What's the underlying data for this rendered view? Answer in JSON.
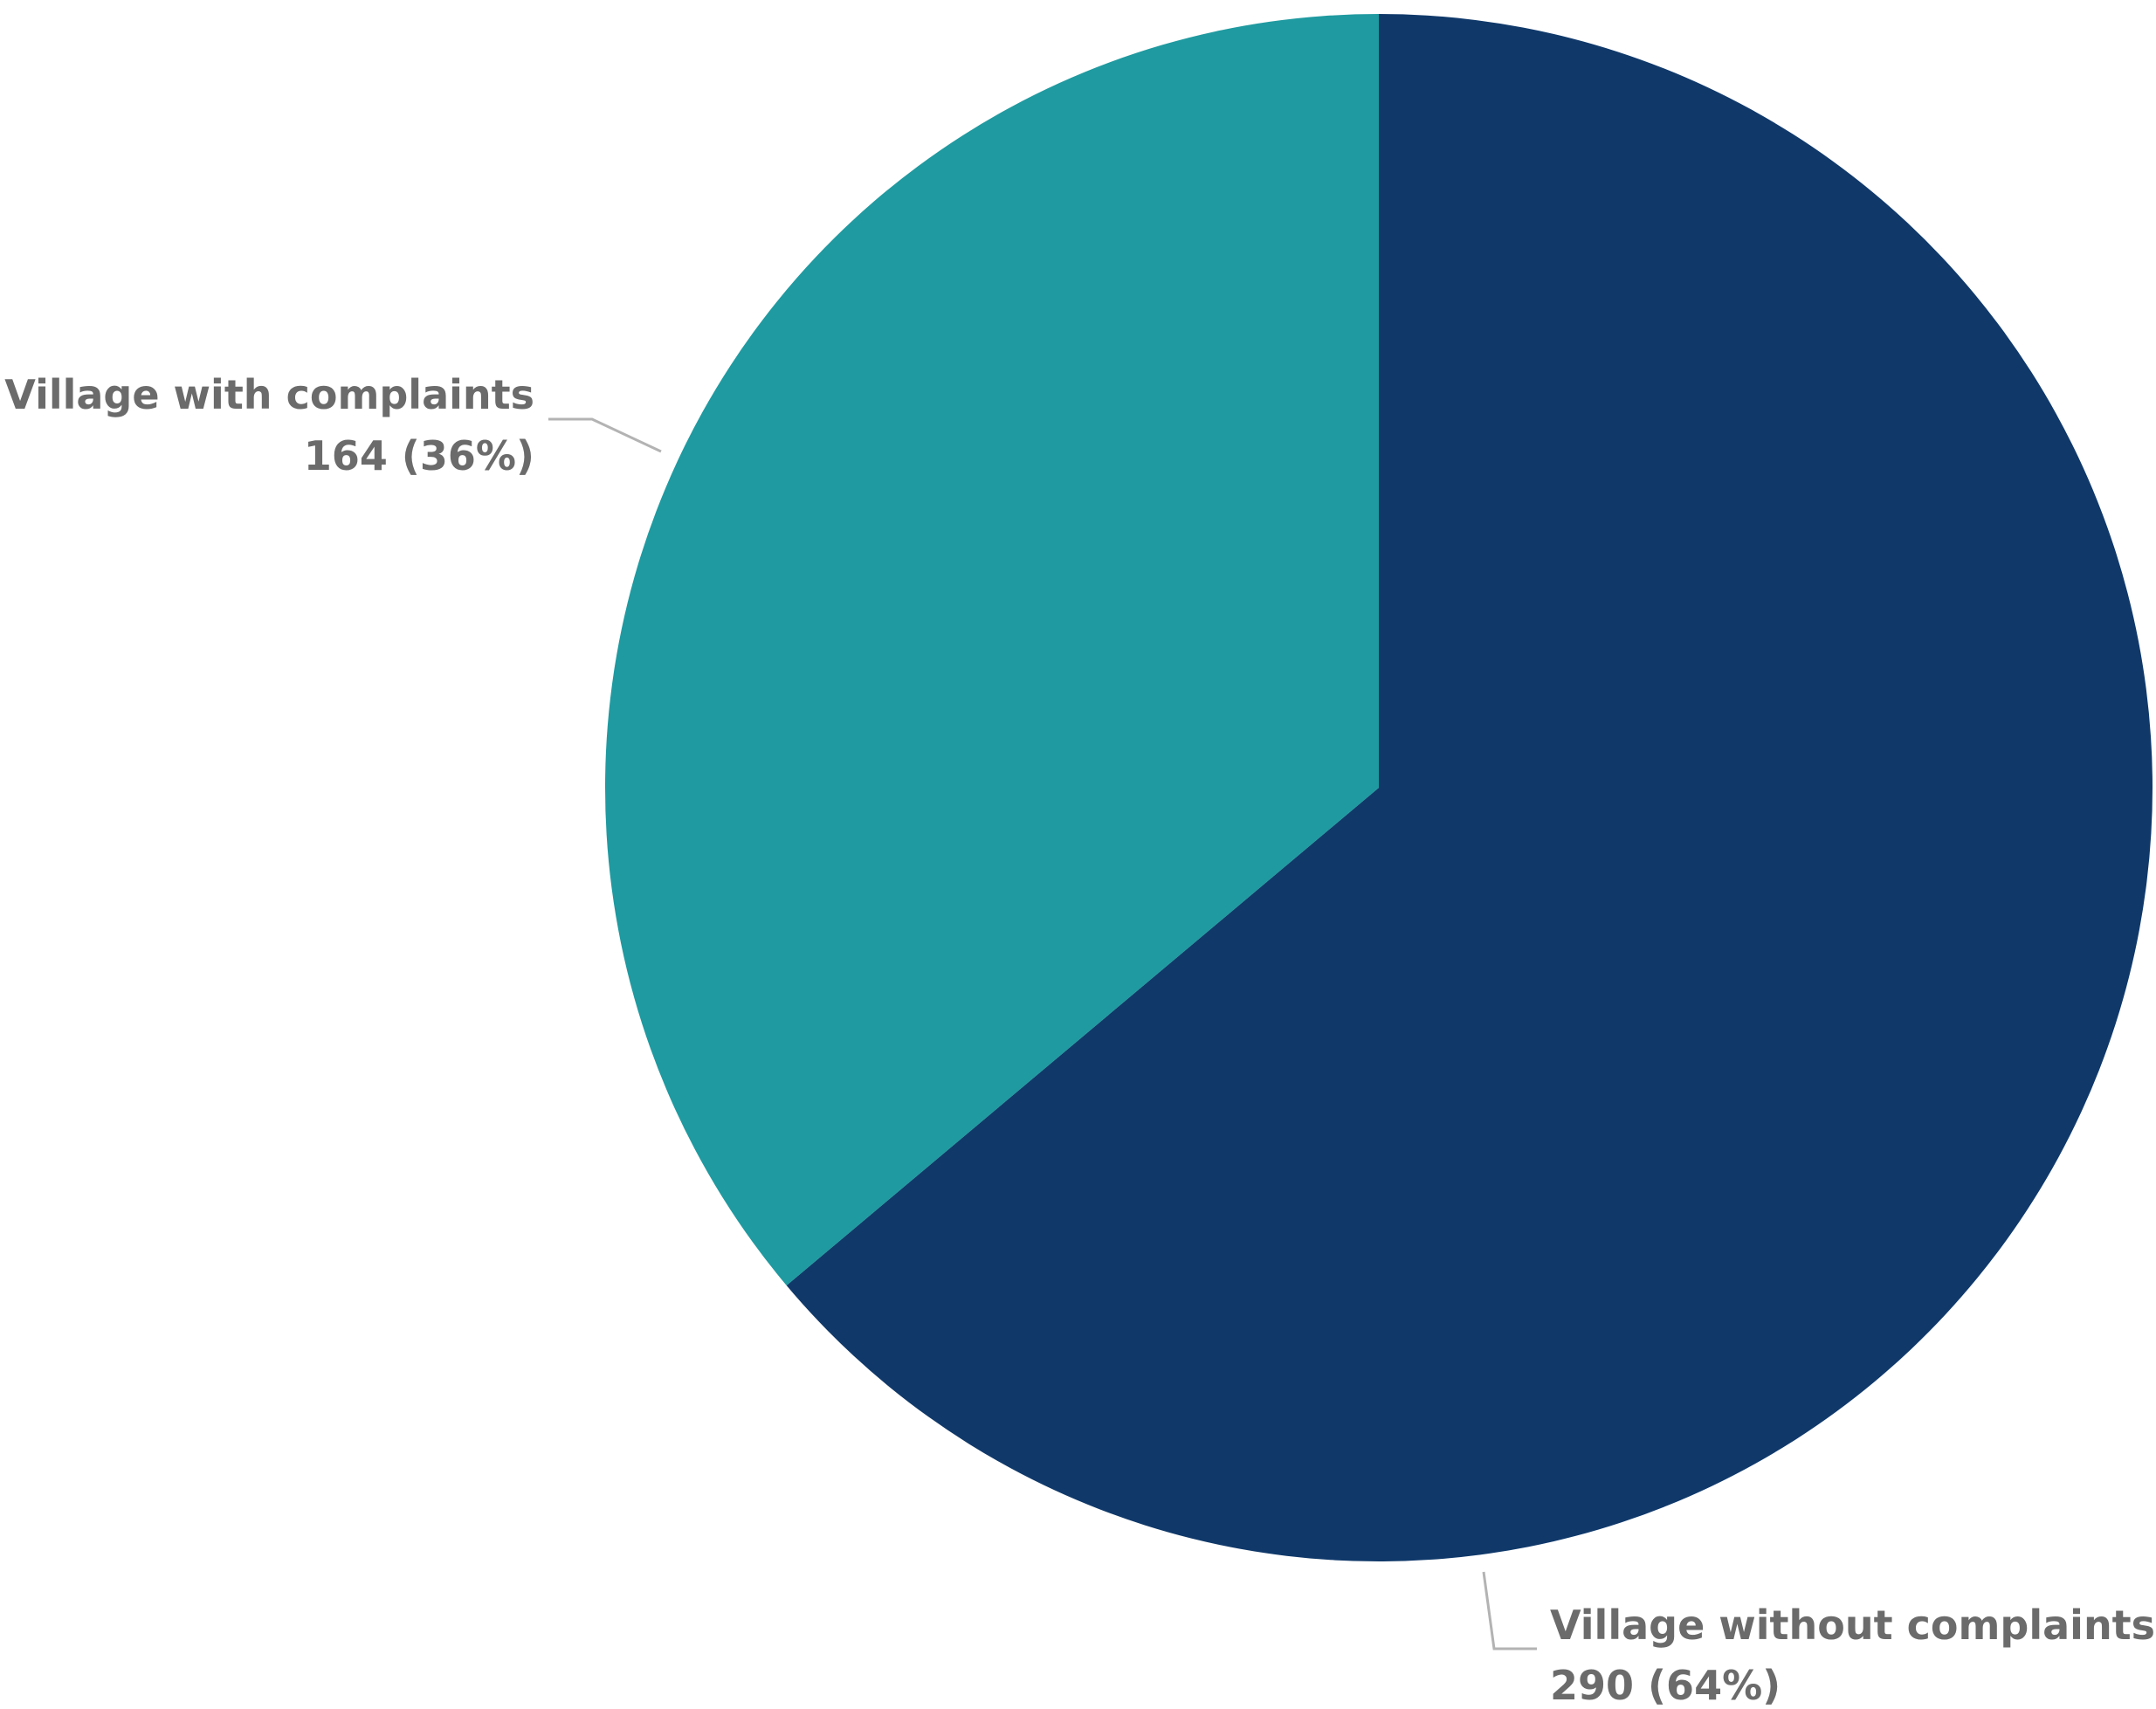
{
  "chart_data": {
    "type": "pie",
    "title": "",
    "slices": [
      {
        "name": "Village without complaints",
        "value": 290,
        "percent_label": "290 (64%)",
        "color": "#10396a"
      },
      {
        "name": "Village with complaints",
        "value": 164,
        "percent_label": "164 (36%)",
        "color": "#1f9aa0"
      }
    ],
    "start_angle": "12 o'clock",
    "direction": "clockwise",
    "legend": "none",
    "labels": "outside with leader lines"
  }
}
